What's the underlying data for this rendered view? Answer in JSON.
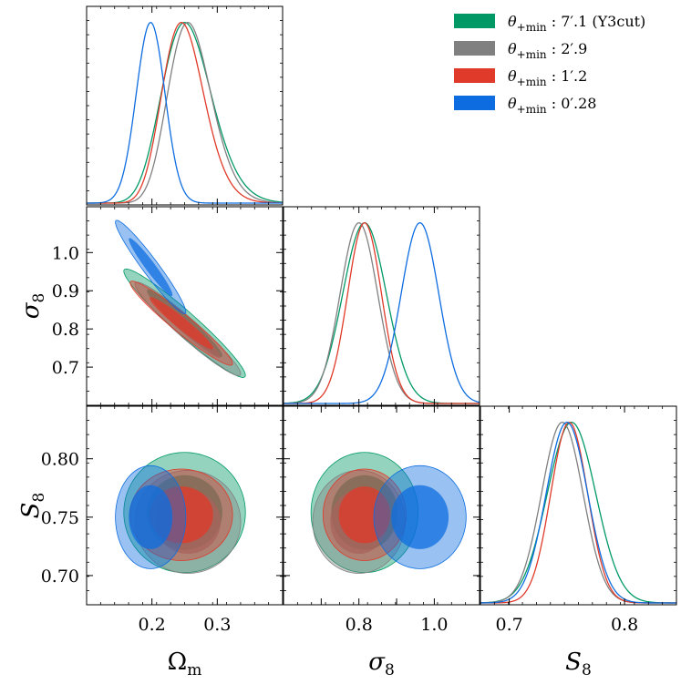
{
  "chart_data": {
    "type": "corner",
    "parameters": [
      {
        "symbol": "Ω",
        "subscript": "m",
        "range": [
          0.1,
          0.4
        ],
        "ticks": [
          "0.2",
          "0.3"
        ]
      },
      {
        "symbol": "σ",
        "subscript": "8",
        "range": [
          0.6,
          1.12
        ],
        "ticks": [
          "0.7",
          "0.8",
          "0.9",
          "1.0"
        ]
      },
      {
        "symbol": "S",
        "subscript": "8",
        "range": [
          0.675,
          0.845
        ],
        "ticks": [
          "0.70",
          "0.75",
          "0.80"
        ]
      }
    ],
    "diag_x_ticks": [
      [
        "0.2",
        "0.3"
      ],
      [
        "0.8",
        "1.0"
      ],
      [
        "0.7",
        "0.8"
      ]
    ],
    "legend_position": "top-right",
    "series": [
      {
        "name": "θ+min : 7′.1 (Y3cut)",
        "theta": "θ",
        "sub": "+min",
        "value": ": 7′.1 (Y3cut)",
        "color": "#009966",
        "mean": {
          "Om": 0.25,
          "s8": 0.815,
          "S8": 0.754
        },
        "sd": {
          "Om": 0.038,
          "s8": 0.058,
          "S8": 0.021
        },
        "corr": -0.96
      },
      {
        "name": "θ+min : 2′.9",
        "theta": "θ",
        "sub": "+min",
        "value": ": 2′.9",
        "color": "#808080",
        "mean": {
          "Om": 0.255,
          "s8": 0.8,
          "S8": 0.746
        },
        "sd": {
          "Om": 0.033,
          "s8": 0.05,
          "S8": 0.018
        },
        "corr": -0.96
      },
      {
        "name": "θ+min : 1′.2",
        "theta": "θ",
        "sub": "+min",
        "value": ": 1′.2",
        "color": "#e03a2a",
        "mean": {
          "Om": 0.245,
          "s8": 0.815,
          "S8": 0.752
        },
        "sd": {
          "Om": 0.032,
          "s8": 0.045,
          "S8": 0.016
        },
        "corr": -0.96
      },
      {
        "name": "θ+min : 0′.28",
        "theta": "θ",
        "sub": "+min",
        "value": ": 0′.28",
        "color": "#0d6de0",
        "mean": {
          "Om": 0.198,
          "s8": 0.962,
          "S8": 0.75
        },
        "sd": {
          "Om": 0.022,
          "s8": 0.05,
          "S8": 0.018
        },
        "corr": -0.96
      }
    ]
  }
}
